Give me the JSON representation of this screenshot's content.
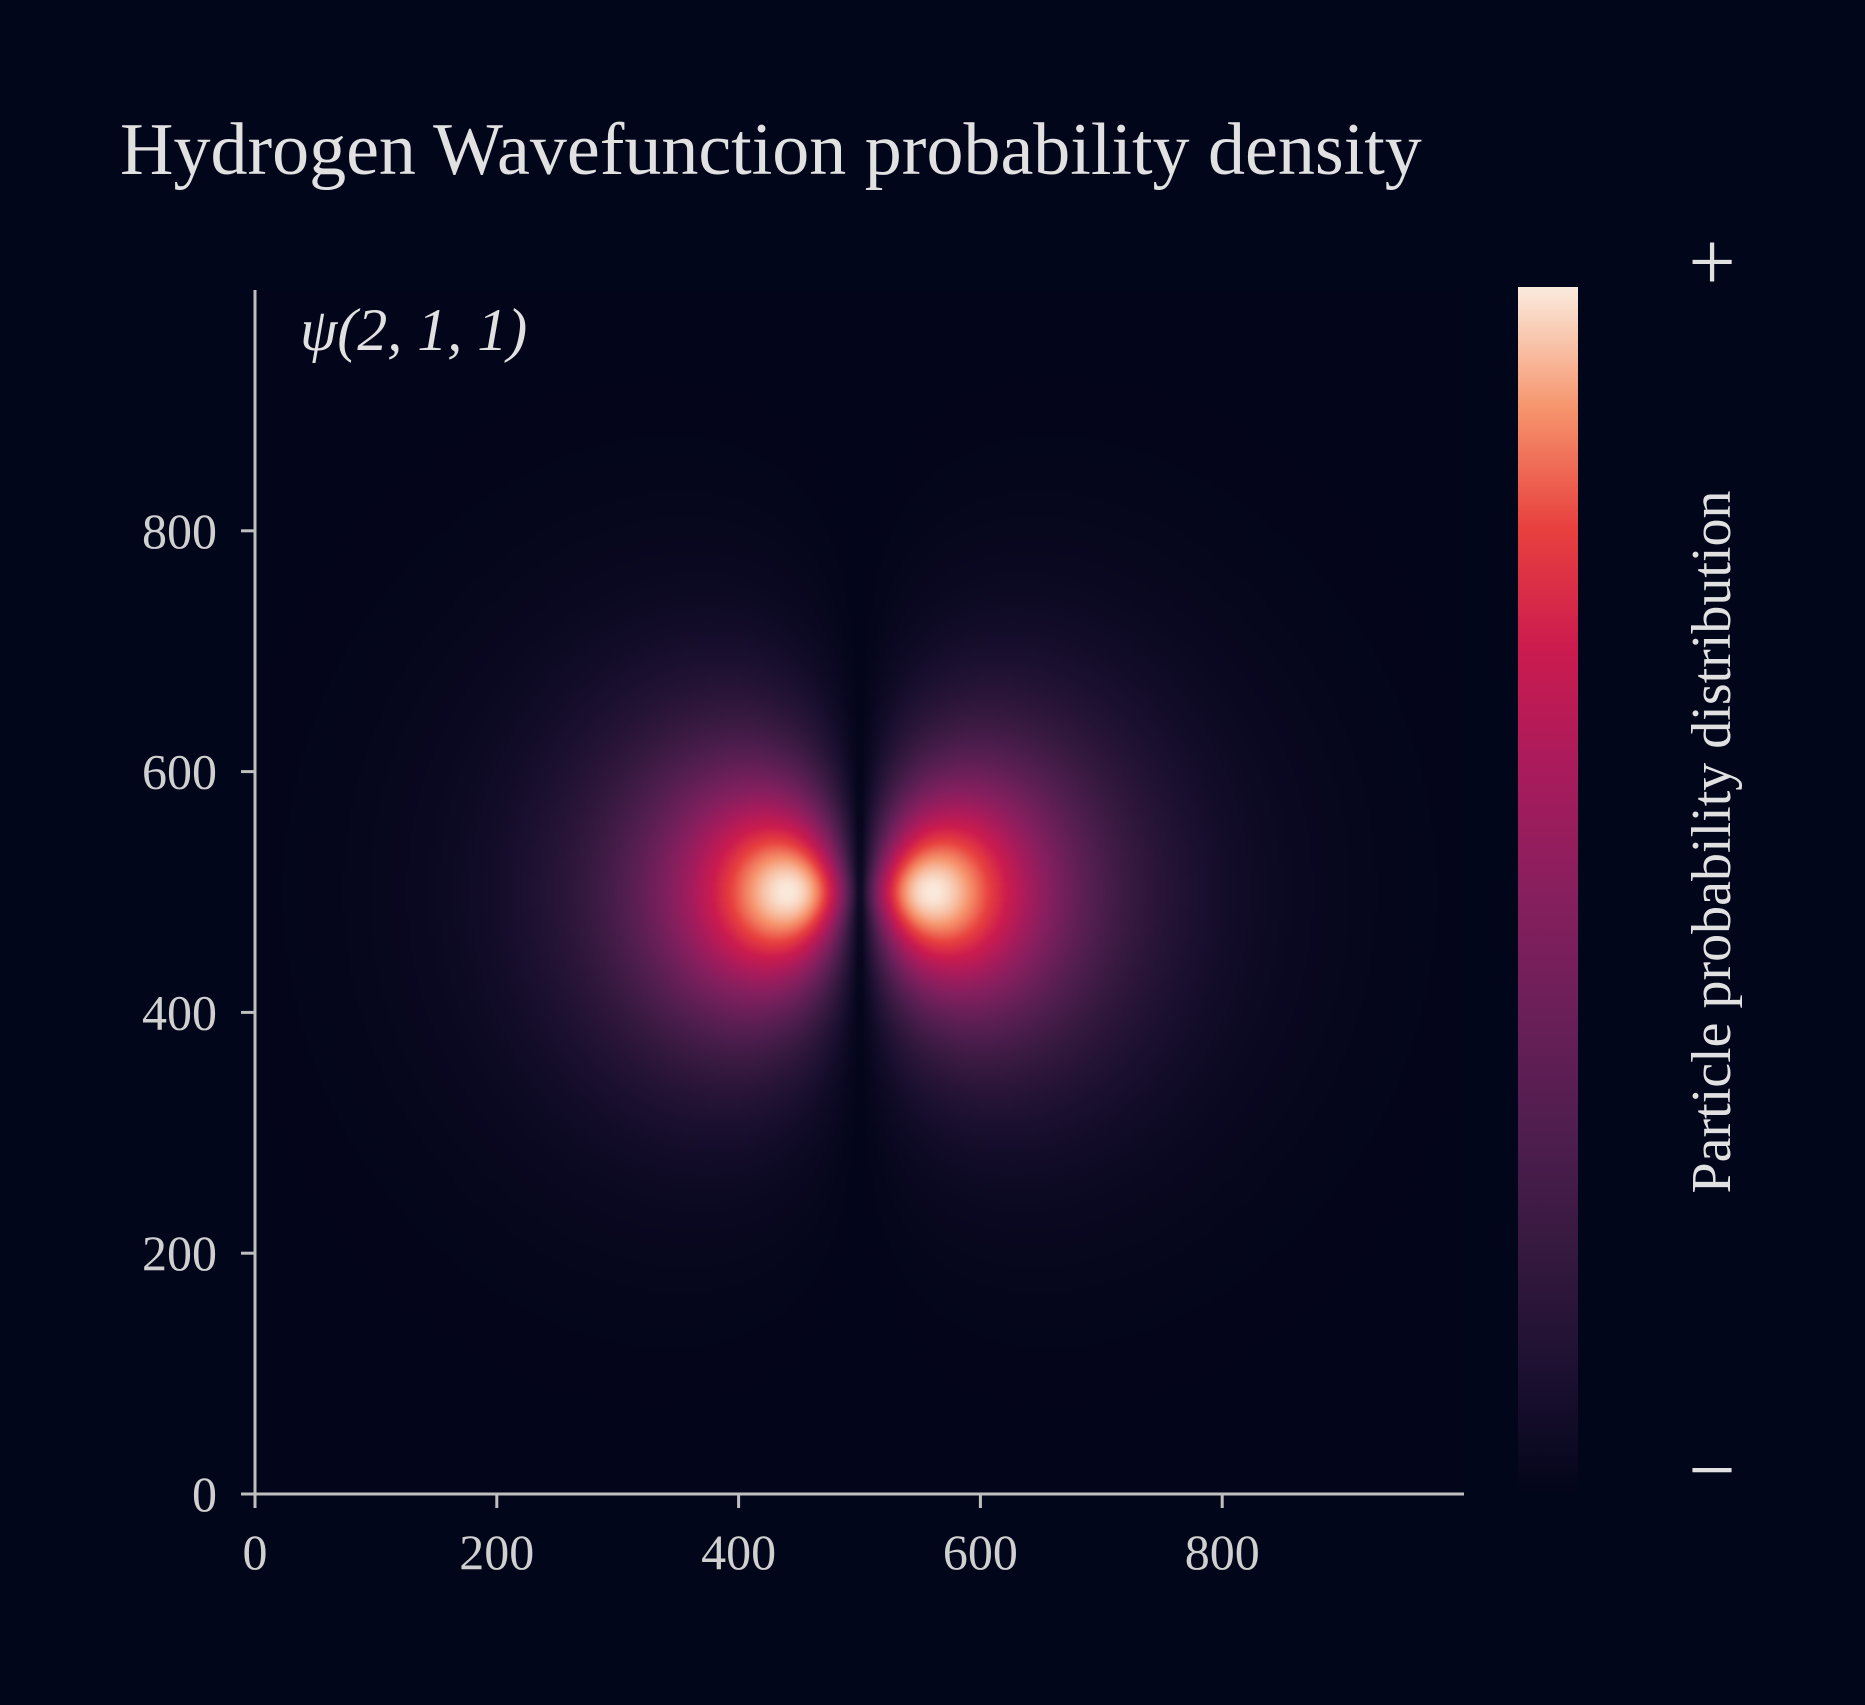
{
  "chart_data": {
    "type": "heatmap",
    "title": "Hydrogen Wavefunction probability density",
    "annotation": "ψ(2, 1, 1)",
    "quantum_numbers": {
      "n": 2,
      "l": 1,
      "m": 1
    },
    "xlabel": "",
    "ylabel": "",
    "xlim": [
      0,
      1000
    ],
    "ylim": [
      0,
      1000
    ],
    "xticks": [
      0,
      200,
      400,
      600,
      800
    ],
    "yticks": [
      0,
      200,
      400,
      600,
      800
    ],
    "colormap": "rocket",
    "colorbar": {
      "label": "Particle probability distribution",
      "max_label": "+",
      "min_label": "−"
    },
    "peaks": [
      {
        "x": 440,
        "y": 500
      },
      {
        "x": 560,
        "y": 500
      }
    ],
    "nodal_line_x": 500,
    "grid": false
  },
  "colors": {
    "background": "#02061b",
    "text": "#e1e1e1",
    "axis": "#bfbfbf"
  }
}
